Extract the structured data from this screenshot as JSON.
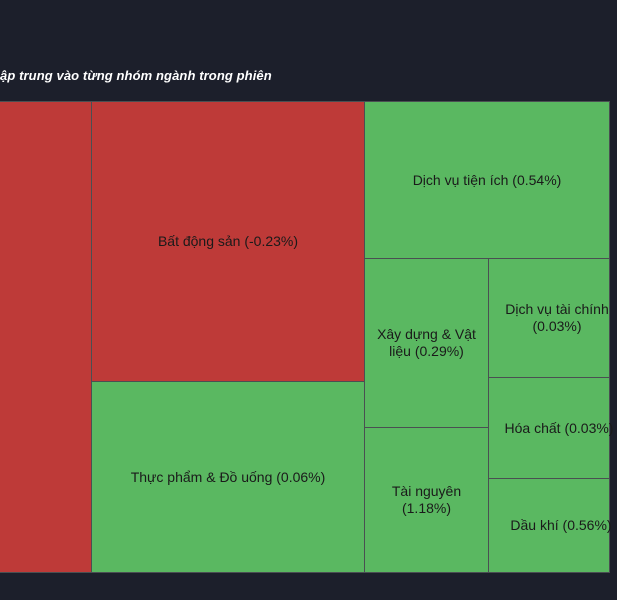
{
  "title": "ập trung vào từng nhóm ngành trong phiên",
  "colors": {
    "negative": "#be3a38",
    "positive": "#5ab861",
    "background": "#1c1f2b"
  },
  "chart_data": {
    "type": "treemap",
    "title": "ập trung vào từng nhóm ngành trong phiên",
    "tiles": [
      {
        "label": "",
        "change": "",
        "sign": "negative"
      },
      {
        "label": "Bất động sản (-0.23%)",
        "sector": "Bất động sản",
        "change": -0.23,
        "sign": "negative"
      },
      {
        "label": "Thực phẩm & Đồ uống (0.06%)",
        "sector": "Thực phẩm & Đồ uống",
        "change": 0.06,
        "sign": "positive"
      },
      {
        "label": "Dịch vụ tiện ích (0.54%)",
        "sector": "Dịch vụ tiện ích",
        "change": 0.54,
        "sign": "positive"
      },
      {
        "label": "Xây dựng & Vật\nliệu (0.29%)",
        "sector": "Xây dựng & Vật liệu",
        "change": 0.29,
        "sign": "positive"
      },
      {
        "label": "Tài nguyên\n(1.18%)",
        "sector": "Tài nguyên",
        "change": 1.18,
        "sign": "positive"
      },
      {
        "label": "Dịch vụ tài chính\n(0.03%)",
        "sector": "Dịch vụ tài chính",
        "change": 0.03,
        "sign": "positive"
      },
      {
        "label": "Hóa chất (0.03%)",
        "sector": "Hóa chất",
        "change": 0.03,
        "sign": "positive"
      },
      {
        "label": "Dầu khí (0.56%)",
        "sector": "Dầu khí",
        "change": 0.56,
        "sign": "positive"
      }
    ]
  }
}
